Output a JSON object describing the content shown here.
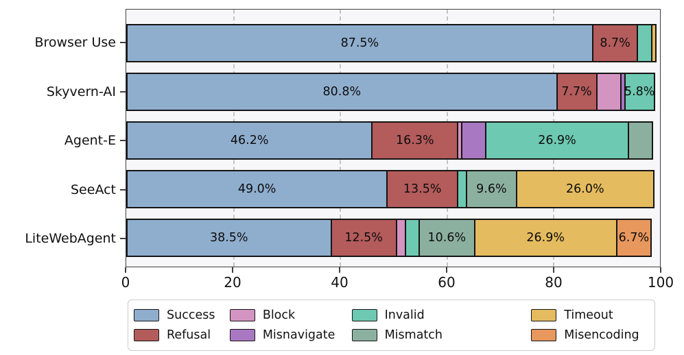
{
  "chart_data": {
    "type": "bar",
    "orientation": "horizontal",
    "stacked": true,
    "title": "",
    "xlabel": "",
    "ylabel": "",
    "xlim": [
      0,
      100
    ],
    "x_ticks": [
      0,
      20,
      40,
      60,
      80,
      100
    ],
    "grid": "vertical-dashed",
    "legend_position": "bottom",
    "legend_columns": 4,
    "categories": [
      "Browser Use",
      "Skyvern-AI",
      "Agent-E",
      "SeeAct",
      "LiteWebAgent"
    ],
    "series_order": [
      "Success",
      "Refusal",
      "Block",
      "Misnavigate",
      "Invalid",
      "Mismatch",
      "Timeout",
      "Misencoding"
    ],
    "palette": {
      "Success": "#8FAECE",
      "Refusal": "#B45B5B",
      "Block": "#D494C2",
      "Misnavigate": "#A978C3",
      "Invalid": "#6DC9B1",
      "Mismatch": "#8CB0A0",
      "Timeout": "#E5BB5F",
      "Misencoding": "#E8975D"
    },
    "rows": [
      {
        "category": "Browser Use",
        "segments": [
          {
            "series": "Success",
            "pct": 87.5,
            "label": "87.5%"
          },
          {
            "series": "Refusal",
            "pct": 8.7,
            "label": "8.7%"
          },
          {
            "series": "Invalid",
            "pct": 2.9,
            "label": ""
          },
          {
            "series": "Timeout",
            "pct": 1.0,
            "label": ""
          }
        ]
      },
      {
        "category": "Skyvern-AI",
        "segments": [
          {
            "series": "Success",
            "pct": 80.8,
            "label": "80.8%"
          },
          {
            "series": "Refusal",
            "pct": 7.7,
            "label": "7.7%"
          },
          {
            "series": "Block",
            "pct": 4.8,
            "label": ""
          },
          {
            "series": "Misnavigate",
            "pct": 1.0,
            "label": ""
          },
          {
            "series": "Invalid",
            "pct": 5.8,
            "label": "5.8%"
          }
        ]
      },
      {
        "category": "Agent-E",
        "segments": [
          {
            "series": "Success",
            "pct": 46.2,
            "label": "46.2%"
          },
          {
            "series": "Refusal",
            "pct": 16.3,
            "label": "16.3%"
          },
          {
            "series": "Block",
            "pct": 1.0,
            "label": ""
          },
          {
            "series": "Misnavigate",
            "pct": 4.8,
            "label": ""
          },
          {
            "series": "Invalid",
            "pct": 26.9,
            "label": "26.9%"
          },
          {
            "series": "Mismatch",
            "pct": 4.8,
            "label": ""
          }
        ]
      },
      {
        "category": "SeeAct",
        "segments": [
          {
            "series": "Success",
            "pct": 49.0,
            "label": "49.0%"
          },
          {
            "series": "Refusal",
            "pct": 13.5,
            "label": "13.5%"
          },
          {
            "series": "Invalid",
            "pct": 1.9,
            "label": ""
          },
          {
            "series": "Mismatch",
            "pct": 9.6,
            "label": "9.6%"
          },
          {
            "series": "Timeout",
            "pct": 26.0,
            "label": "26.0%"
          }
        ]
      },
      {
        "category": "LiteWebAgent",
        "segments": [
          {
            "series": "Success",
            "pct": 38.5,
            "label": "38.5%"
          },
          {
            "series": "Refusal",
            "pct": 12.5,
            "label": "12.5%"
          },
          {
            "series": "Block",
            "pct": 1.9,
            "label": ""
          },
          {
            "series": "Invalid",
            "pct": 2.9,
            "label": ""
          },
          {
            "series": "Mismatch",
            "pct": 10.6,
            "label": "10.6%"
          },
          {
            "series": "Timeout",
            "pct": 26.9,
            "label": "26.9%"
          },
          {
            "series": "Misencoding",
            "pct": 6.7,
            "label": "6.7%"
          }
        ]
      }
    ],
    "legend_entries": [
      "Success",
      "Refusal",
      "Block",
      "Misnavigate",
      "Invalid",
      "Mismatch",
      "Timeout",
      "Misencoding"
    ]
  },
  "colors": {
    "bar_edge": "#141414",
    "gridline": "#c3c3c3",
    "spine": "#3f3f3f",
    "plot_background": "#f7f7f9",
    "figure_background": "#ffffff",
    "legend_border": "#cccccc",
    "text": "#111111"
  }
}
